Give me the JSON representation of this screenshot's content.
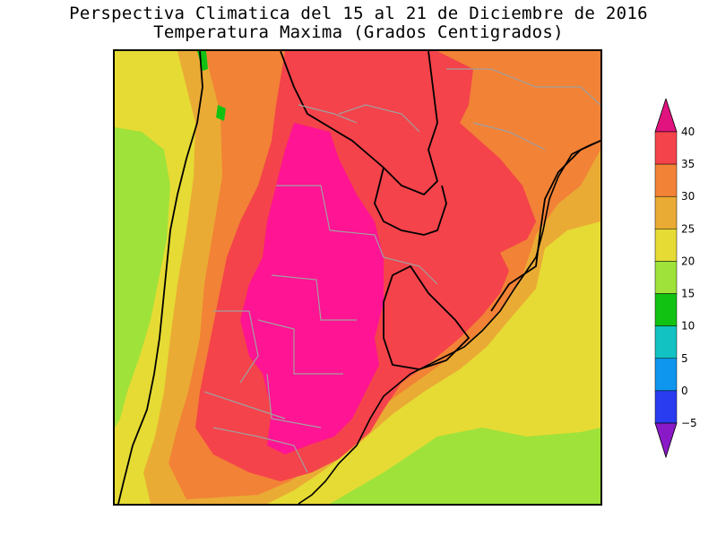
{
  "title": {
    "line1": "Perspectiva Climatica del 15 al 21 de Diciembre de 2016",
    "line2": "Temperatura Maxima (Grados Centigrados)"
  },
  "colorbar": {
    "levels": [
      "40",
      "35",
      "30",
      "25",
      "20",
      "15",
      "10",
      "5",
      "0",
      "−5"
    ],
    "colors": [
      "#ff3aa0",
      "#f4434a",
      "#f28236",
      "#eaab35",
      "#e6db34",
      "#9fe23a",
      "#12c213",
      "#12c1c1",
      "#0e96ee",
      "#2a3cf0",
      "#7a18d6"
    ],
    "over_color": "#e0137f",
    "under_color": "#8a19c8"
  },
  "map": {
    "field_colors": {
      "pink": "#ff1493",
      "red": "#f4434a",
      "orange": "#f28236",
      "light_orange": "#eaab35",
      "yellow": "#e6db34",
      "light_green": "#9fe23a",
      "green": "#12c213"
    },
    "border_color": "#000000",
    "province_color": "#a0a0a0"
  }
}
